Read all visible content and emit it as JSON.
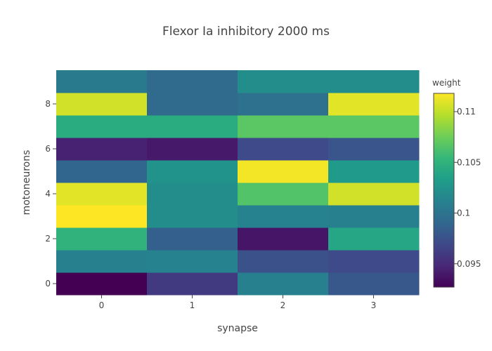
{
  "chart_data": {
    "type": "heatmap",
    "title": "Flexor Ia inhibitory 2000 ms",
    "xlabel": "synapse",
    "ylabel": "motoneurons",
    "x": [
      0,
      1,
      2,
      3
    ],
    "y": [
      0,
      1,
      2,
      3,
      4,
      5,
      6,
      7,
      8,
      9
    ],
    "x_ticks": [
      "0",
      "1",
      "2",
      "3"
    ],
    "y_ticks": [
      "0",
      "2",
      "4",
      "6",
      "8"
    ],
    "z": [
      [
        0.0927,
        0.096,
        0.101,
        0.098
      ],
      [
        0.101,
        0.1012,
        0.0975,
        0.097
      ],
      [
        0.105,
        0.0985,
        0.0938,
        0.104
      ],
      [
        0.1118,
        0.102,
        0.1012,
        0.101
      ],
      [
        0.111,
        0.102,
        0.1065,
        0.1105
      ],
      [
        0.099,
        0.1025,
        0.1115,
        0.103
      ],
      [
        0.0945,
        0.094,
        0.097,
        0.0978
      ],
      [
        0.1045,
        0.1045,
        0.1068,
        0.1068
      ],
      [
        0.1105,
        0.0993,
        0.0998,
        0.111
      ],
      [
        0.1005,
        0.0993,
        0.102,
        0.102
      ]
    ],
    "colorscale": "Viridis",
    "zmin": 0.0927,
    "zmax": 0.1118,
    "colorbar": {
      "title": "weight",
      "ticks": [
        0.095,
        0.1,
        0.105,
        0.11
      ],
      "tick_labels": [
        "0.095",
        "0.1",
        "0.105",
        "0.11"
      ]
    },
    "grid": false
  }
}
